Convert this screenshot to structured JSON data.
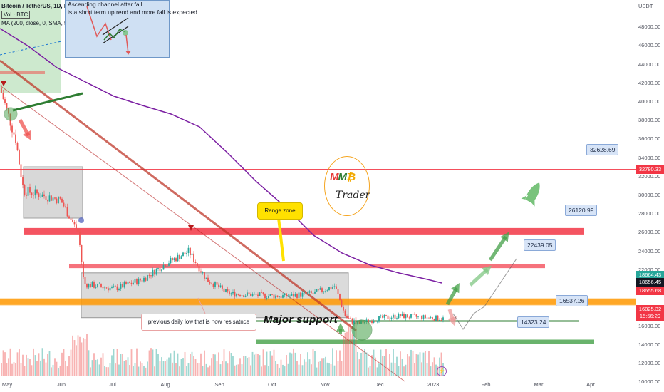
{
  "chart_data": {
    "type": "candlestick",
    "symbol_line": "Bitcoin / TetherUS, 1D, BINANCE",
    "volume_label": "Vol · BTC",
    "ma_label": "MA (200, close, 0, SMA, 5)",
    "x_ticks": [
      "May",
      "Jun",
      "Jul",
      "Aug",
      "Sep",
      "Oct",
      "Nov",
      "Dec",
      "2023",
      "Feb",
      "Mar",
      "Apr"
    ],
    "y_axis_unit": "USDT",
    "y_ticks": [
      "48000.00",
      "46000.00",
      "44000.00",
      "42000.00",
      "40000.00",
      "38000.00",
      "36000.00",
      "34000.00",
      "32000.00",
      "30000.00",
      "28000.00",
      "26000.00",
      "24000.00",
      "22000.00",
      "20000.00",
      "18000.00",
      "16000.00",
      "14000.00",
      "12000.00",
      "10000.00"
    ],
    "ylim": [
      9500,
      49000
    ],
    "monthly_closes_approx": [
      {
        "month": "May",
        "value": 38000
      },
      {
        "month": "Jun",
        "value": 30000
      },
      {
        "month": "Jul",
        "value": 20000
      },
      {
        "month": "Aug",
        "value": 23000
      },
      {
        "month": "Sep",
        "value": 20000
      },
      {
        "month": "Oct",
        "value": 19500
      },
      {
        "month": "Nov",
        "value": 17000
      },
      {
        "month": "Dec",
        "value": 16800
      }
    ],
    "price_flags": [
      {
        "value": "32780.33",
        "color": "#f23645"
      },
      {
        "value": "18664.43",
        "color": "#26a69a"
      },
      {
        "value": "18656.45",
        "color": "#131722"
      },
      {
        "value": "18655.68",
        "color": "#f23645"
      },
      {
        "value": "16825.32",
        "color": "#f23645"
      },
      {
        "value": "15:56:29",
        "color": "#f23645"
      }
    ],
    "level_labels": [
      "32628.69",
      "26120.99",
      "22439.05",
      "16537.26",
      "14323.24"
    ],
    "annotations": {
      "inset_line1": "Ascending channel after fall",
      "inset_line2": "is a short term uptrend and more fall is expected",
      "range_zone": "Range zone",
      "previous_low": "previous daily low that is now resisatnce",
      "major_support": "Major support",
      "logo_mmb": "MMB",
      "logo_trader": "Trader"
    },
    "colors": {
      "up": "#26a69a",
      "down": "#ef5350",
      "ma": "#7b1fa2",
      "resistance": "#f23645",
      "support": "#43a047",
      "orange_zone": "#ff9800"
    }
  }
}
